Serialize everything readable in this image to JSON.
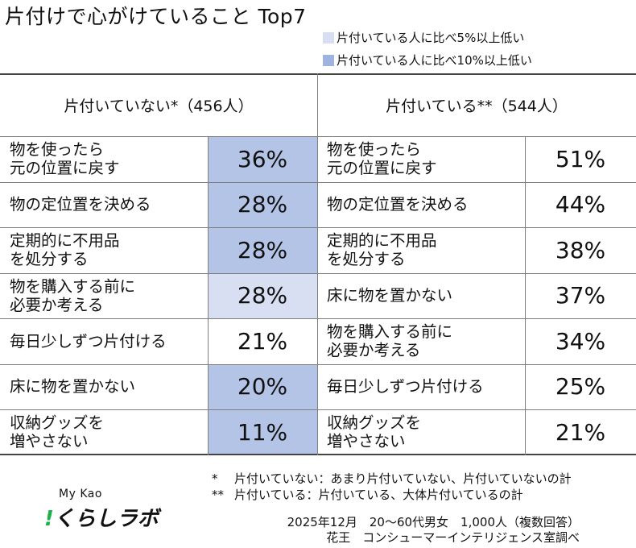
{
  "title": "片付けで心がけていること Top7",
  "legend": [
    {
      "label": "片付いている人に比べ5%以上低い",
      "color": "#d9dff2"
    },
    {
      "label": "片付いている人に比べ10%以上低い",
      "color": "#9fb3e0"
    }
  ],
  "colors": {
    "highlight_light": "#d9dff2",
    "highlight_dark": "#b4c4e6",
    "border": "#7f7f7f"
  },
  "chart_data": {
    "type": "table",
    "columns": [
      {
        "header": "片付いていない*（456人）",
        "rows": [
          {
            "label": "物を使ったら\n元の位置に戻す",
            "value": "36%",
            "highlight": "10%"
          },
          {
            "label": "物の定位置を決める",
            "value": "28%",
            "highlight": "10%"
          },
          {
            "label": "定期的に不用品\nを処分する",
            "value": "28%",
            "highlight": "10%"
          },
          {
            "label": "物を購入する前に\n必要か考える",
            "value": "28%",
            "highlight": "5%"
          },
          {
            "label": "毎日少しずつ片付ける",
            "value": "21%",
            "highlight": "none"
          },
          {
            "label": "床に物を置かない",
            "value": "20%",
            "highlight": "10%"
          },
          {
            "label": "収納グッズを\n増やさない",
            "value": "11%",
            "highlight": "10%"
          }
        ]
      },
      {
        "header": "片付いている**（544人）",
        "rows": [
          {
            "label": "物を使ったら\n元の位置に戻す",
            "value": "51%",
            "highlight": "none"
          },
          {
            "label": "物の定位置を決める",
            "value": "44%",
            "highlight": "none"
          },
          {
            "label": "定期的に不用品\nを処分する",
            "value": "38%",
            "highlight": "none"
          },
          {
            "label": "床に物を置かない",
            "value": "37%",
            "highlight": "none"
          },
          {
            "label": "物を購入する前に\n必要か考える",
            "value": "34%",
            "highlight": "none"
          },
          {
            "label": "毎日少しずつ片付ける",
            "value": "25%",
            "highlight": "none"
          },
          {
            "label": "収納グッズを\n増やさない",
            "value": "21%",
            "highlight": "none"
          }
        ]
      }
    ]
  },
  "notes": [
    {
      "mark": "*",
      "text": "片付いていない：あまり片付いていない、片付いていないの計"
    },
    {
      "mark": "**",
      "text": "片付いている：片付いている、大体片付いているの計"
    }
  ],
  "source": [
    "2025年12月　20～60代男女　1,000人（複数回答）",
    "花王　コンシューマーインテリジェンス室調べ"
  ],
  "logo": {
    "top": "My Kao",
    "bang": "!",
    "bottom": "くらしラボ"
  }
}
